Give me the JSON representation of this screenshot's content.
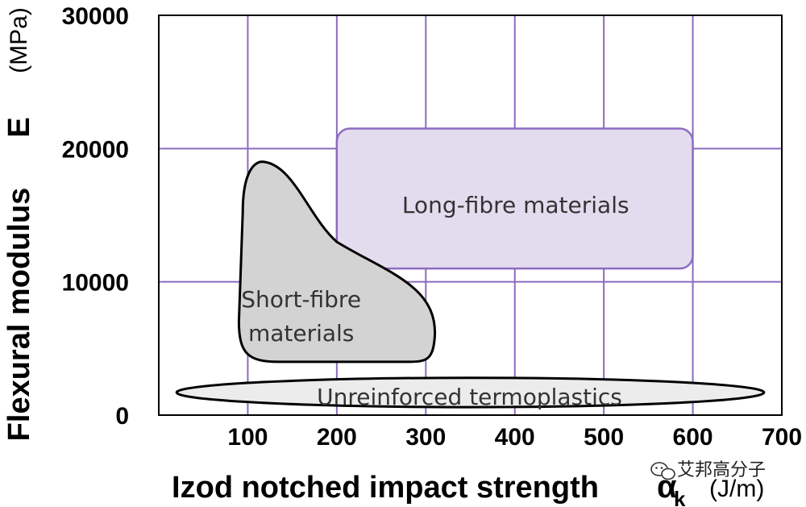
{
  "chart_data": {
    "type": "area",
    "xlabel": "Izod notched impact strength",
    "x_symbol": "α",
    "x_symbol_sub": "k",
    "x_unit": "(J/m)",
    "ylabel": "Flexural modulus",
    "y_symbol": "E",
    "y_unit": "(MPa)",
    "xlim": [
      0,
      700
    ],
    "ylim": [
      0,
      30000
    ],
    "x_ticks": [
      "100",
      "200",
      "300",
      "400",
      "500",
      "600",
      "700"
    ],
    "y_ticks": [
      "0",
      "10000",
      "20000",
      "30000"
    ],
    "grid": true,
    "regions": [
      {
        "name": "Long-fibre materials",
        "label_lines": [
          "Long-fibre materials"
        ],
        "color": "#e3dcee",
        "x_range": [
          200,
          600
        ],
        "y_range": [
          11000,
          21500
        ]
      },
      {
        "name": "Short-fibre materials",
        "label_lines": [
          "Short-fibre",
          "materials"
        ],
        "color": "#d3d3d3",
        "x_range": [
          90,
          310
        ],
        "y_range": [
          4000,
          19000
        ]
      },
      {
        "name": "Unreinforced termoplastics",
        "label_lines": [
          "Unreinforced termoplastics"
        ],
        "color": "#ececec",
        "x_range": [
          20,
          680
        ],
        "y_range": [
          600,
          2800
        ]
      }
    ]
  },
  "colors": {
    "grid": "#8a6bbf",
    "axis": "#000000",
    "region_outline": "#000000",
    "long_fibre_outline": "#8e6bc2"
  },
  "watermark": {
    "icon": "wechat-icon",
    "text": "艾邦高分子"
  }
}
